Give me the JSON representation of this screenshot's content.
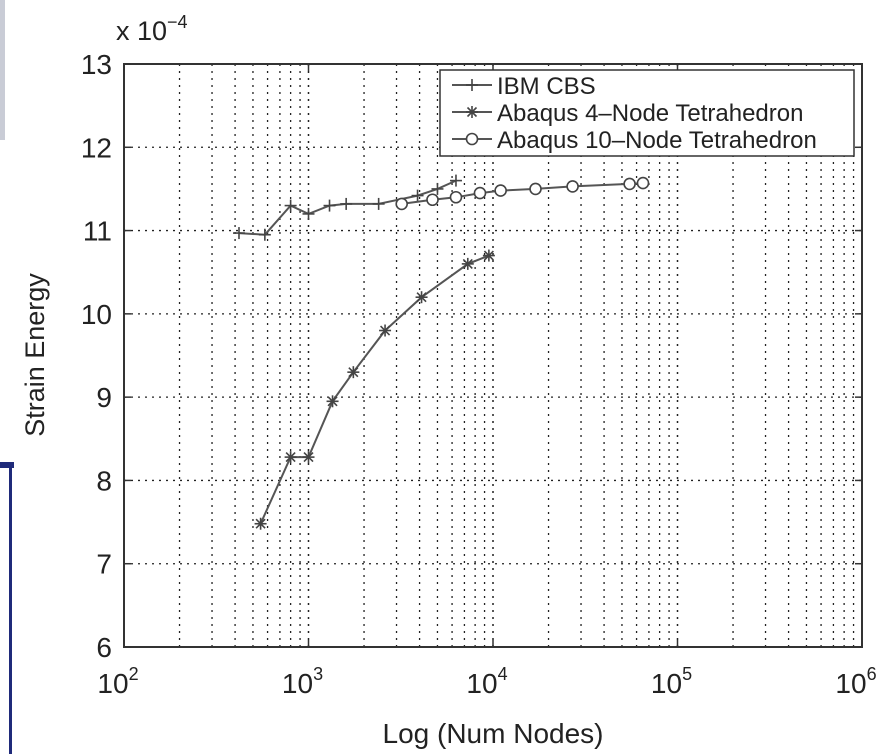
{
  "chart_data": {
    "type": "line",
    "title": "",
    "xlabel": "Log (Num Nodes)",
    "ylabel": "Strain Energy",
    "y_multiplier_label": "x 10",
    "y_multiplier_exponent": "−4",
    "x_scale": "log",
    "xlim": [
      100,
      1000000
    ],
    "ylim": [
      6,
      13
    ],
    "x_ticks": [
      {
        "base": "10",
        "exp": "2",
        "value": 100
      },
      {
        "base": "10",
        "exp": "3",
        "value": 1000
      },
      {
        "base": "10",
        "exp": "4",
        "value": 10000
      },
      {
        "base": "10",
        "exp": "5",
        "value": 100000
      },
      {
        "base": "10",
        "exp": "6",
        "value": 1000000
      }
    ],
    "y_ticks": [
      "6",
      "7",
      "8",
      "9",
      "10",
      "11",
      "12",
      "13"
    ],
    "grid": true,
    "legend_position": "top-right",
    "series": [
      {
        "name": "IBM CBS",
        "marker": "plus",
        "color": "#555555",
        "x": [
          420,
          580,
          800,
          1000,
          1300,
          1600,
          2400,
          3900,
          5000,
          6300
        ],
        "y": [
          10.97,
          10.95,
          11.3,
          11.2,
          11.3,
          11.32,
          11.32,
          11.42,
          11.5,
          11.6
        ]
      },
      {
        "name": "Abaqus 4–Node Tetrahedron",
        "marker": "star",
        "color": "#555555",
        "x": [
          550,
          800,
          1000,
          1350,
          1750,
          2600,
          4100,
          7300,
          9500
        ],
        "y": [
          7.48,
          8.28,
          8.28,
          8.95,
          9.3,
          9.8,
          10.2,
          10.6,
          10.7
        ]
      },
      {
        "name": "Abaqus 10–Node Tetrahedron",
        "marker": "circle",
        "color": "#555555",
        "x": [
          3200,
          4700,
          6300,
          8500,
          11000,
          17000,
          27000,
          55000,
          65000
        ],
        "y": [
          11.32,
          11.37,
          11.4,
          11.45,
          11.48,
          11.5,
          11.53,
          11.56,
          11.57
        ]
      }
    ]
  }
}
